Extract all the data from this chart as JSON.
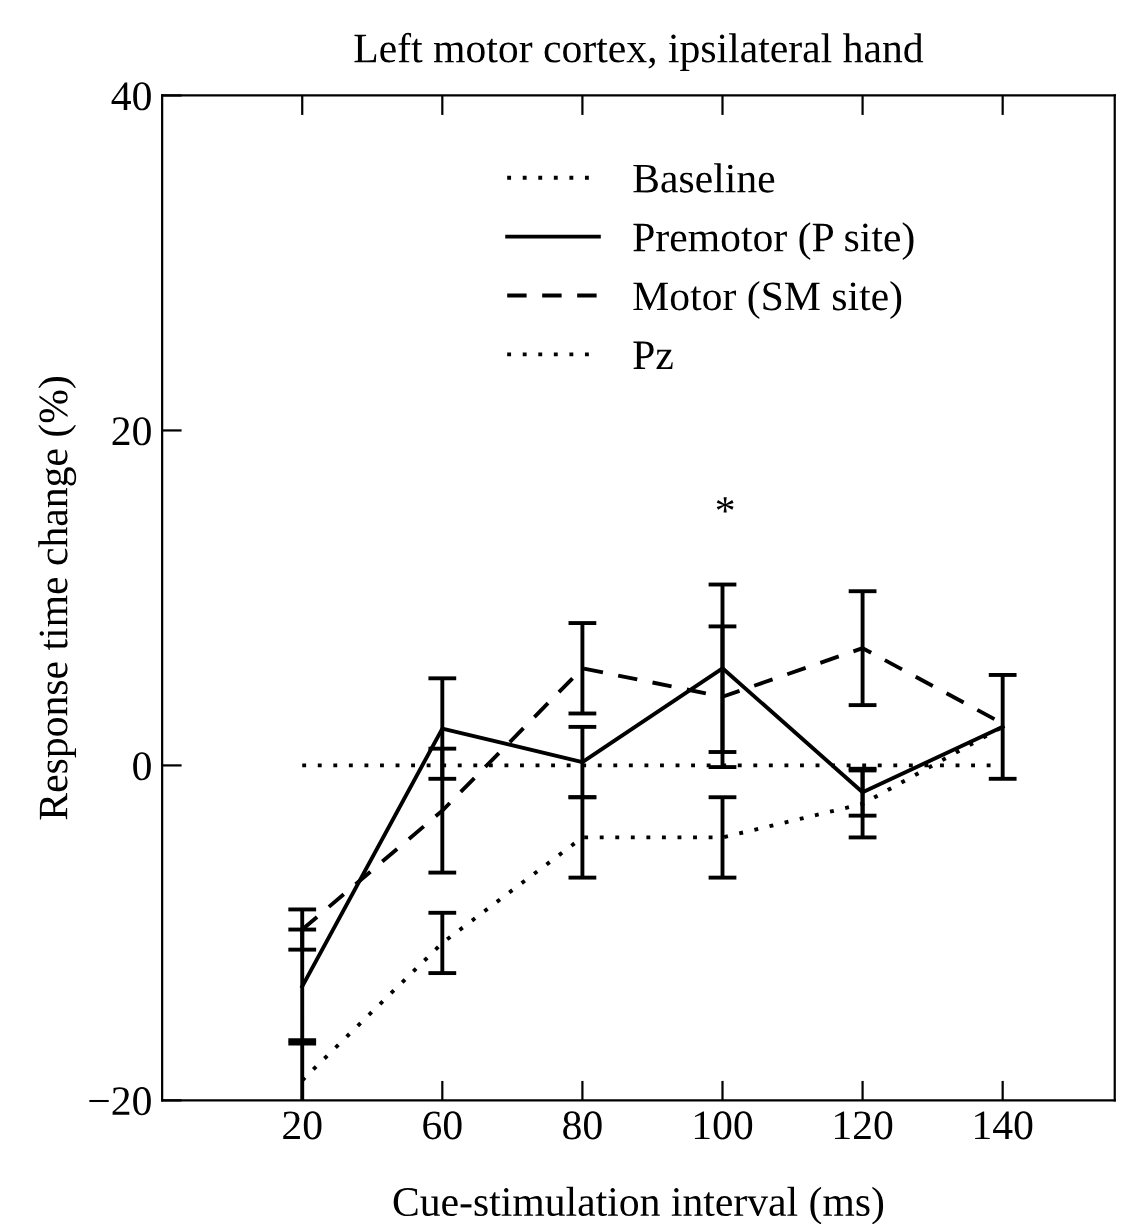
{
  "chart_data": {
    "type": "line",
    "title": "Left motor cortex, ipsilateral hand",
    "xlabel": "Cue-stimulation interval (ms)",
    "ylabel": "Response time change (%)",
    "categories": [
      "20",
      "60",
      "80",
      "100",
      "120",
      "140"
    ],
    "series": [
      {
        "name": "Baseline",
        "color": "#000000",
        "line_style": "dotted",
        "values": [
          0,
          0,
          0,
          0,
          0,
          0
        ]
      },
      {
        "name": "Premotor (P site)",
        "color": "#000000",
        "line_style": "solid",
        "values": [
          -13.2,
          2.2,
          0.2,
          5.8,
          -1.6,
          2.3
        ],
        "errors": [
          3.4,
          3.0,
          2.1,
          5.0,
          1.4,
          3.1
        ]
      },
      {
        "name": "Motor (SM site)",
        "color": "#000000",
        "line_style": "dashed",
        "values": [
          -9.8,
          -2.7,
          5.8,
          4.1,
          7.0,
          2.5
        ],
        "errors": [
          1.2,
          3.7,
          2.7,
          4.2,
          3.4,
          null
        ]
      },
      {
        "name": "Pz",
        "color": "#000000",
        "line_style": "dotted",
        "values": [
          -18.8,
          -10.6,
          -4.3,
          -4.3,
          -2.3,
          2.3
        ],
        "errors": [
          2.4,
          1.8,
          2.4,
          2.4,
          2.0,
          null
        ]
      }
    ],
    "ylim": [
      -20,
      40
    ],
    "yticks": [
      {
        "value": -20,
        "label": "−20"
      },
      20,
      0,
      40
    ],
    "annotations": [
      "*"
    ],
    "legend": "top right",
    "grid": false
  }
}
